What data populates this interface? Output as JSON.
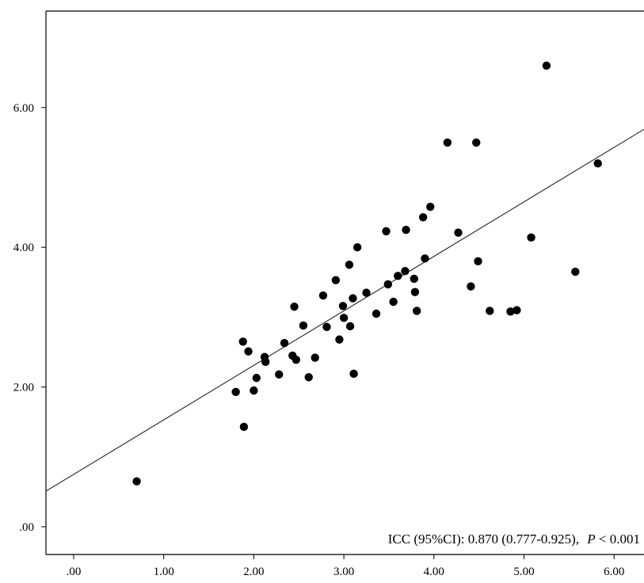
{
  "chart_data": {
    "type": "scatter",
    "xlim": [
      -0.3,
      6.2
    ],
    "ylim": [
      -0.3,
      7.0
    ],
    "x_ticks": [
      {
        "value": 0,
        "label": ".00"
      },
      {
        "value": 1,
        "label": "1.00"
      },
      {
        "value": 2,
        "label": "2.00"
      },
      {
        "value": 3,
        "label": "3.00"
      },
      {
        "value": 4,
        "label": "4.00"
      },
      {
        "value": 5,
        "label": "5.00"
      },
      {
        "value": 6,
        "label": "6.00"
      }
    ],
    "y_ticks": [
      {
        "value": 0,
        "label": ".00"
      },
      {
        "value": 2,
        "label": "2.00"
      },
      {
        "value": 4,
        "label": "4.00"
      },
      {
        "value": 6,
        "label": "6.00"
      }
    ],
    "grid": false,
    "point_color": "#000000",
    "fit_line": {
      "slope": 0.78,
      "intercept": 0.75
    },
    "points": [
      [
        0.7,
        0.65
      ],
      [
        1.8,
        1.93
      ],
      [
        1.88,
        2.65
      ],
      [
        1.89,
        1.43
      ],
      [
        1.94,
        2.51
      ],
      [
        2.0,
        1.95
      ],
      [
        2.03,
        2.13
      ],
      [
        2.12,
        2.43
      ],
      [
        2.13,
        2.36
      ],
      [
        2.28,
        2.18
      ],
      [
        2.34,
        2.63
      ],
      [
        2.43,
        2.45
      ],
      [
        2.45,
        3.15
      ],
      [
        2.47,
        2.39
      ],
      [
        2.55,
        2.88
      ],
      [
        2.61,
        2.14
      ],
      [
        2.68,
        2.42
      ],
      [
        2.77,
        3.31
      ],
      [
        2.81,
        2.86
      ],
      [
        2.91,
        3.53
      ],
      [
        2.95,
        2.68
      ],
      [
        2.99,
        3.16
      ],
      [
        3.0,
        2.99
      ],
      [
        3.06,
        3.75
      ],
      [
        3.07,
        2.87
      ],
      [
        3.1,
        3.27
      ],
      [
        3.11,
        2.19
      ],
      [
        3.15,
        4.0
      ],
      [
        3.25,
        3.35
      ],
      [
        3.36,
        3.05
      ],
      [
        3.47,
        4.23
      ],
      [
        3.49,
        3.47
      ],
      [
        3.55,
        3.22
      ],
      [
        3.6,
        3.59
      ],
      [
        3.68,
        3.66
      ],
      [
        3.69,
        4.25
      ],
      [
        3.78,
        3.55
      ],
      [
        3.79,
        3.36
      ],
      [
        3.81,
        3.09
      ],
      [
        3.88,
        4.43
      ],
      [
        3.9,
        3.84
      ],
      [
        3.96,
        4.58
      ],
      [
        4.15,
        5.5
      ],
      [
        4.27,
        4.21
      ],
      [
        4.41,
        3.44
      ],
      [
        4.47,
        5.5
      ],
      [
        4.49,
        3.8
      ],
      [
        4.62,
        3.09
      ],
      [
        4.85,
        3.08
      ],
      [
        4.92,
        3.1
      ],
      [
        5.08,
        4.14
      ],
      [
        5.25,
        6.6
      ],
      [
        5.57,
        3.65
      ],
      [
        5.82,
        5.2
      ]
    ],
    "annotation": {
      "prefix": "ICC (95%CI): 0.870 (0.777-0.925),",
      "italic": "P",
      "suffix": " < 0.001"
    }
  }
}
